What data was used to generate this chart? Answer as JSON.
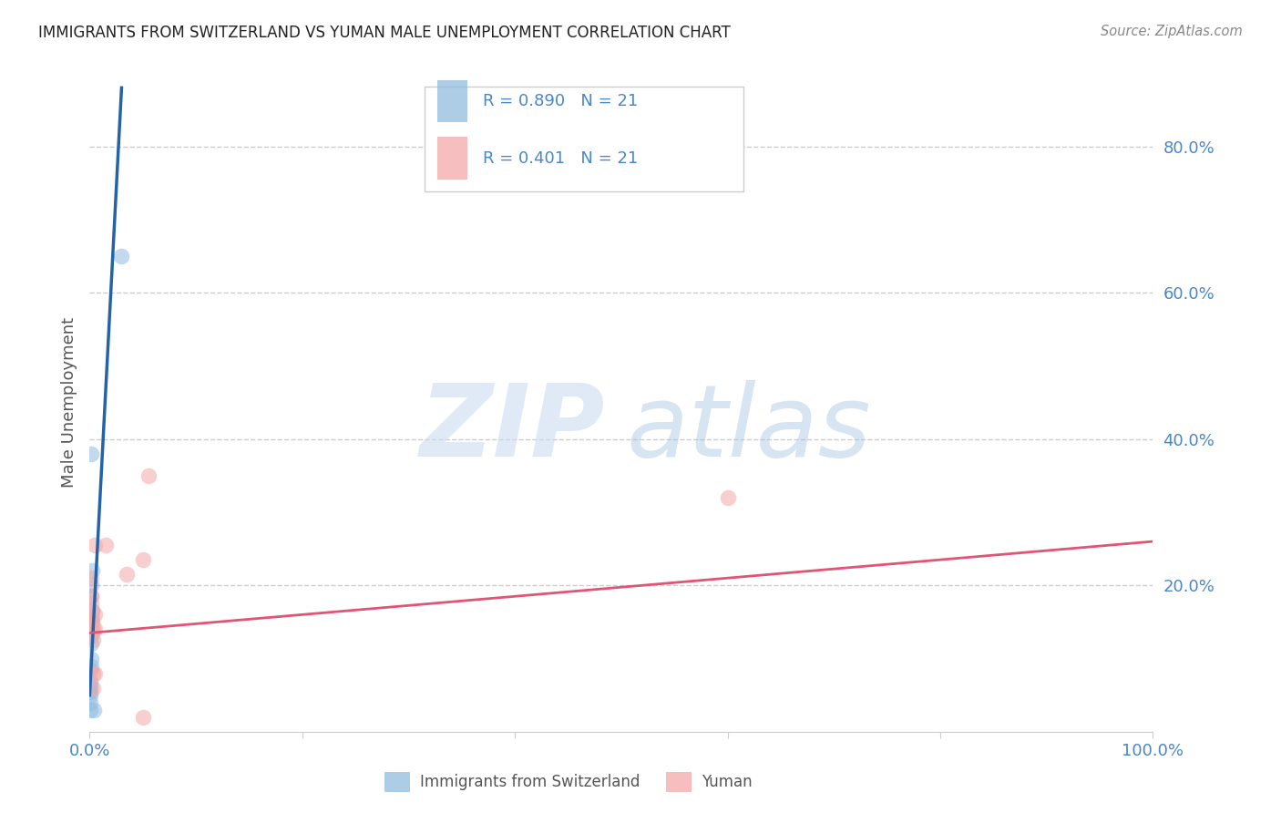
{
  "title": "IMMIGRANTS FROM SWITZERLAND VS YUMAN MALE UNEMPLOYMENT CORRELATION CHART",
  "source": "Source: ZipAtlas.com",
  "ylabel": "Male Unemployment",
  "r1": "0.890",
  "n1": "21",
  "r2": "0.401",
  "n2": "21",
  "blue_fill": "#92bde0",
  "pink_fill": "#f4a8a8",
  "blue_line": "#2563a8",
  "pink_line": "#e05575",
  "axis_tick_color": "#4a86c8",
  "legend_text_color": "#1a1a2e",
  "legend_value_color": "#4a86c8",
  "grid_color": "#cccccc",
  "title_color": "#222222",
  "source_color": "#888888",
  "legend1_label": "Immigrants from Switzerland",
  "legend2_label": "Yuman",
  "blue_scatter_x": [
    0.001,
    0.002,
    0.001,
    0.001,
    0.002,
    0.001,
    0.002,
    0.001,
    0.001,
    0.001,
    0.001,
    0.0005,
    0.0005,
    0.0005,
    0.0005,
    0.0005,
    0.0005,
    0.0005,
    0.0005,
    0.004,
    0.03
  ],
  "blue_scatter_y": [
    0.38,
    0.22,
    0.2,
    0.185,
    0.165,
    0.155,
    0.15,
    0.13,
    0.12,
    0.1,
    0.09,
    0.085,
    0.07,
    0.065,
    0.06,
    0.055,
    0.05,
    0.04,
    0.03,
    0.03,
    0.65
  ],
  "pink_scatter_x": [
    0.001,
    0.001,
    0.001,
    0.002,
    0.002,
    0.002,
    0.002,
    0.003,
    0.003,
    0.003,
    0.003,
    0.005,
    0.005,
    0.005,
    0.005,
    0.015,
    0.035,
    0.05,
    0.055,
    0.05,
    0.6
  ],
  "pink_scatter_y": [
    0.21,
    0.185,
    0.175,
    0.165,
    0.155,
    0.145,
    0.135,
    0.14,
    0.125,
    0.08,
    0.06,
    0.255,
    0.16,
    0.14,
    0.08,
    0.255,
    0.215,
    0.235,
    0.35,
    0.02,
    0.32
  ],
  "blue_trend_x": [
    0.0,
    0.03
  ],
  "blue_trend_y": [
    0.05,
    0.88
  ],
  "pink_trend_x": [
    0.0,
    1.0
  ],
  "pink_trend_y": [
    0.135,
    0.26
  ],
  "xlim": [
    0.0,
    1.0
  ],
  "ylim": [
    0.0,
    0.9
  ],
  "yticks": [
    0.2,
    0.4,
    0.6,
    0.8
  ],
  "ytick_labels": [
    "20.0%",
    "40.0%",
    "60.0%",
    "80.0%"
  ],
  "scatter_size": 160,
  "scatter_alpha": 0.55
}
